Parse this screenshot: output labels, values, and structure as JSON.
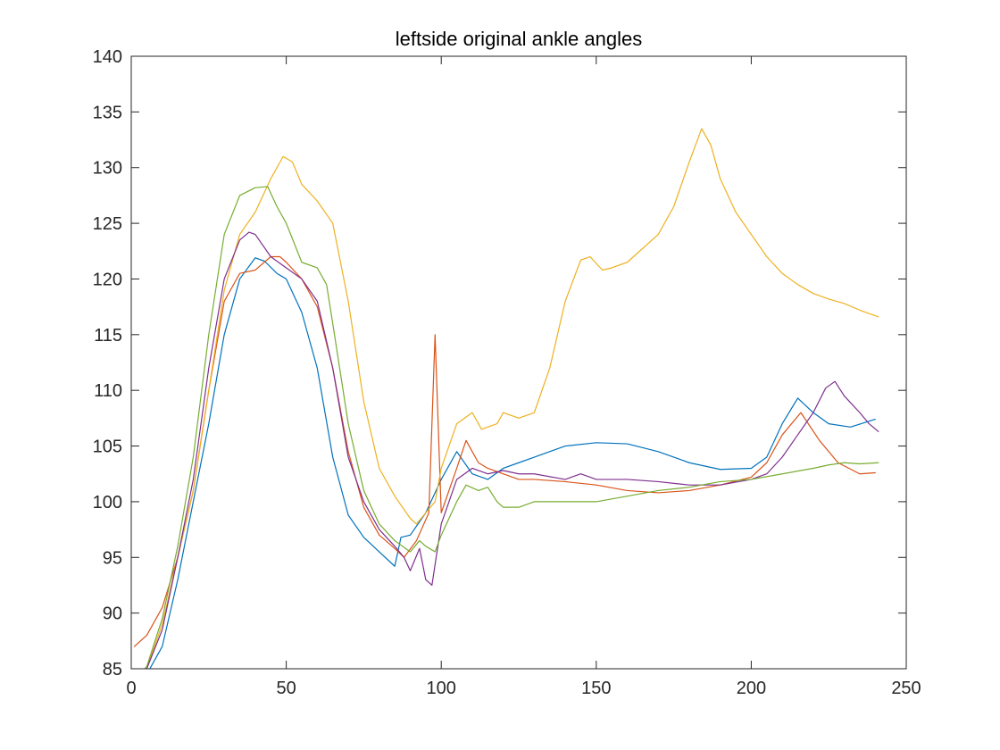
{
  "chart_data": {
    "type": "line",
    "title": "leftside original ankle angles",
    "xlabel": "",
    "ylabel": "",
    "xlim": [
      0,
      250
    ],
    "ylim": [
      85,
      140
    ],
    "xticks": [
      0,
      50,
      100,
      150,
      200,
      250
    ],
    "yticks": [
      85,
      90,
      95,
      100,
      105,
      110,
      115,
      120,
      125,
      130,
      135,
      140
    ],
    "grid": false,
    "legend": "none",
    "series": [
      {
        "color": "#0072BD",
        "points": [
          [
            1,
            84
          ],
          [
            5,
            84.5
          ],
          [
            10,
            87
          ],
          [
            15,
            93
          ],
          [
            20,
            100
          ],
          [
            25,
            107
          ],
          [
            30,
            115
          ],
          [
            35,
            120
          ],
          [
            40,
            121.9
          ],
          [
            43,
            121.6
          ],
          [
            47,
            120.5
          ],
          [
            50,
            120
          ],
          [
            55,
            117
          ],
          [
            60,
            112
          ],
          [
            65,
            104
          ],
          [
            70,
            98.8
          ],
          [
            75,
            96.8
          ],
          [
            80,
            95.5
          ],
          [
            85,
            94.2
          ],
          [
            87,
            96.8
          ],
          [
            90,
            97
          ],
          [
            95,
            99
          ],
          [
            100,
            102
          ],
          [
            105,
            104.5
          ],
          [
            110,
            102.5
          ],
          [
            115,
            102
          ],
          [
            120,
            103
          ],
          [
            125,
            103.5
          ],
          [
            130,
            104
          ],
          [
            140,
            105
          ],
          [
            150,
            105.3
          ],
          [
            160,
            105.2
          ],
          [
            170,
            104.5
          ],
          [
            180,
            103.5
          ],
          [
            190,
            102.9
          ],
          [
            200,
            103
          ],
          [
            205,
            104
          ],
          [
            210,
            107
          ],
          [
            215,
            109.3
          ],
          [
            220,
            108
          ],
          [
            225,
            107
          ],
          [
            232,
            106.7
          ],
          [
            240,
            107.4
          ]
        ]
      },
      {
        "color": "#D95319",
        "points": [
          [
            1,
            87
          ],
          [
            5,
            88
          ],
          [
            10,
            90.5
          ],
          [
            15,
            95
          ],
          [
            20,
            101
          ],
          [
            25,
            110
          ],
          [
            30,
            118
          ],
          [
            35,
            120.5
          ],
          [
            40,
            120.8
          ],
          [
            45,
            122
          ],
          [
            48,
            122
          ],
          [
            50,
            121.5
          ],
          [
            55,
            120
          ],
          [
            60,
            117.5
          ],
          [
            65,
            112
          ],
          [
            70,
            104.5
          ],
          [
            75,
            99.5
          ],
          [
            80,
            97
          ],
          [
            85,
            95.8
          ],
          [
            88,
            95
          ],
          [
            92,
            96.5
          ],
          [
            96,
            99
          ],
          [
            98,
            115
          ],
          [
            100,
            99
          ],
          [
            105,
            103
          ],
          [
            108,
            105.5
          ],
          [
            112,
            103.5
          ],
          [
            115,
            103
          ],
          [
            120,
            102.5
          ],
          [
            125,
            102
          ],
          [
            130,
            102
          ],
          [
            140,
            101.8
          ],
          [
            150,
            101.5
          ],
          [
            160,
            101
          ],
          [
            170,
            100.8
          ],
          [
            180,
            101
          ],
          [
            190,
            101.5
          ],
          [
            200,
            102.2
          ],
          [
            205,
            103.5
          ],
          [
            210,
            106
          ],
          [
            216,
            108
          ],
          [
            222,
            105.5
          ],
          [
            228,
            103.5
          ],
          [
            235,
            102.5
          ],
          [
            240,
            102.6
          ]
        ]
      },
      {
        "color": "#EDB120",
        "points": [
          [
            1,
            84
          ],
          [
            5,
            85
          ],
          [
            10,
            89
          ],
          [
            15,
            95
          ],
          [
            20,
            101
          ],
          [
            25,
            110
          ],
          [
            30,
            119
          ],
          [
            35,
            124
          ],
          [
            40,
            126
          ],
          [
            45,
            129
          ],
          [
            49,
            131
          ],
          [
            52,
            130.5
          ],
          [
            55,
            128.5
          ],
          [
            60,
            127
          ],
          [
            65,
            125
          ],
          [
            70,
            118
          ],
          [
            75,
            109
          ],
          [
            80,
            103
          ],
          [
            85,
            100.5
          ],
          [
            90,
            98.5
          ],
          [
            92,
            98
          ],
          [
            95,
            99
          ],
          [
            98,
            100
          ],
          [
            100,
            103
          ],
          [
            105,
            107
          ],
          [
            110,
            108
          ],
          [
            113,
            106.5
          ],
          [
            118,
            107
          ],
          [
            120,
            108
          ],
          [
            125,
            107.5
          ],
          [
            130,
            108
          ],
          [
            135,
            112
          ],
          [
            140,
            118
          ],
          [
            145,
            121.7
          ],
          [
            148,
            122
          ],
          [
            152,
            120.8
          ],
          [
            155,
            121
          ],
          [
            160,
            121.5
          ],
          [
            170,
            124
          ],
          [
            175,
            126.5
          ],
          [
            180,
            130.5
          ],
          [
            184,
            133.5
          ],
          [
            187,
            132
          ],
          [
            190,
            129
          ],
          [
            195,
            126
          ],
          [
            200,
            124
          ],
          [
            205,
            122
          ],
          [
            210,
            120.5
          ],
          [
            215,
            119.5
          ],
          [
            220,
            118.7
          ],
          [
            225,
            118.2
          ],
          [
            230,
            117.8
          ],
          [
            235,
            117.2
          ],
          [
            241,
            116.6
          ]
        ]
      },
      {
        "color": "#7E2F8E",
        "points": [
          [
            1,
            84
          ],
          [
            5,
            85
          ],
          [
            10,
            88.5
          ],
          [
            15,
            95
          ],
          [
            20,
            102
          ],
          [
            25,
            112
          ],
          [
            30,
            120
          ],
          [
            35,
            123.5
          ],
          [
            38,
            124.2
          ],
          [
            40,
            124
          ],
          [
            45,
            122
          ],
          [
            50,
            121
          ],
          [
            55,
            120
          ],
          [
            60,
            118
          ],
          [
            65,
            112
          ],
          [
            70,
            104
          ],
          [
            75,
            100
          ],
          [
            80,
            97.5
          ],
          [
            85,
            96
          ],
          [
            88,
            95
          ],
          [
            90,
            93.8
          ],
          [
            93,
            95.8
          ],
          [
            95,
            93
          ],
          [
            97,
            92.5
          ],
          [
            100,
            98
          ],
          [
            105,
            102
          ],
          [
            110,
            103
          ],
          [
            115,
            102.5
          ],
          [
            120,
            102.8
          ],
          [
            125,
            102.5
          ],
          [
            130,
            102.5
          ],
          [
            140,
            102
          ],
          [
            145,
            102.5
          ],
          [
            150,
            102
          ],
          [
            160,
            102
          ],
          [
            170,
            101.8
          ],
          [
            180,
            101.5
          ],
          [
            190,
            101.5
          ],
          [
            200,
            102
          ],
          [
            205,
            102.5
          ],
          [
            210,
            104
          ],
          [
            215,
            106
          ],
          [
            220,
            108
          ],
          [
            224,
            110.2
          ],
          [
            227,
            110.8
          ],
          [
            230,
            109.5
          ],
          [
            235,
            108
          ],
          [
            238,
            107
          ],
          [
            241,
            106.3
          ]
        ]
      },
      {
        "color": "#77AC30",
        "points": [
          [
            1,
            84
          ],
          [
            5,
            85.2
          ],
          [
            10,
            89.5
          ],
          [
            15,
            96
          ],
          [
            20,
            104
          ],
          [
            25,
            115
          ],
          [
            30,
            124
          ],
          [
            35,
            127.5
          ],
          [
            40,
            128.2
          ],
          [
            44,
            128.3
          ],
          [
            47,
            126.5
          ],
          [
            50,
            125
          ],
          [
            55,
            121.5
          ],
          [
            60,
            121
          ],
          [
            63,
            119.5
          ],
          [
            65,
            116
          ],
          [
            70,
            107
          ],
          [
            75,
            101
          ],
          [
            80,
            98
          ],
          [
            85,
            96.5
          ],
          [
            90,
            95.5
          ],
          [
            93,
            96.5
          ],
          [
            95,
            96
          ],
          [
            98,
            95.5
          ],
          [
            100,
            97
          ],
          [
            105,
            100
          ],
          [
            108,
            101.5
          ],
          [
            112,
            101
          ],
          [
            115,
            101.3
          ],
          [
            118,
            100
          ],
          [
            120,
            99.5
          ],
          [
            125,
            99.5
          ],
          [
            130,
            100
          ],
          [
            140,
            100
          ],
          [
            150,
            100
          ],
          [
            160,
            100.5
          ],
          [
            170,
            101
          ],
          [
            180,
            101.3
          ],
          [
            190,
            101.8
          ],
          [
            200,
            102
          ],
          [
            210,
            102.5
          ],
          [
            220,
            103
          ],
          [
            225,
            103.3
          ],
          [
            230,
            103.5
          ],
          [
            235,
            103.4
          ],
          [
            241,
            103.5
          ]
        ]
      }
    ]
  }
}
